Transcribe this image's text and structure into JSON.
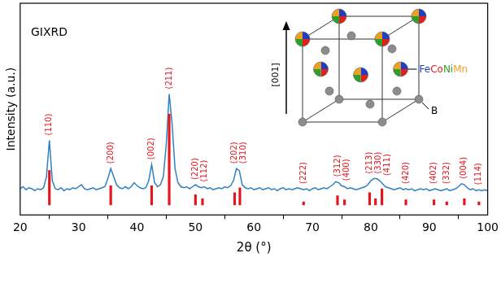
{
  "chart_data": {
    "type": "line",
    "panel_label": "GIXRD",
    "x_label": "2θ (°)",
    "y_label": "Intensity (a.u.)",
    "xlim": [
      20,
      100
    ],
    "xticks": [
      20,
      30,
      40,
      50,
      60,
      70,
      80,
      90,
      100
    ],
    "ylim": [
      -5,
      100
    ],
    "tick_labels": "x",
    "grid": false,
    "series": [
      {
        "type": "line",
        "color": "#2f7fc1",
        "x": [
          20,
          20.5,
          21,
          21.5,
          22,
          22.5,
          23,
          23.5,
          24,
          24.5,
          25,
          25.5,
          26,
          26.5,
          27,
          27.5,
          28,
          28.5,
          29,
          29.5,
          30,
          30.5,
          31,
          31.5,
          32,
          32.5,
          33,
          33.5,
          34,
          34.5,
          35,
          35.5,
          36,
          36.5,
          37,
          37.5,
          38,
          38.5,
          39,
          39.5,
          40,
          40.5,
          41,
          41.5,
          42,
          42.5,
          43,
          43.5,
          44,
          44.5,
          45,
          45.5,
          46,
          46.5,
          47,
          47.5,
          48,
          48.5,
          49,
          49.5,
          50,
          50.5,
          51,
          51.5,
          52,
          52.5,
          53,
          53.5,
          54,
          54.5,
          55,
          55.5,
          56,
          56.5,
          57,
          57.5,
          58,
          58.5,
          59,
          59.5,
          60,
          60.5,
          61,
          61.5,
          62,
          62.5,
          63,
          63.5,
          64,
          64.5,
          65,
          65.5,
          66,
          66.5,
          67,
          67.5,
          68,
          68.5,
          69,
          69.5,
          70,
          70.5,
          71,
          71.5,
          72,
          72.5,
          73,
          73.5,
          74,
          74.5,
          75,
          75.5,
          76,
          76.5,
          77,
          77.5,
          78,
          78.5,
          79,
          79.5,
          80,
          80.5,
          81,
          81.5,
          82,
          82.5,
          83,
          83.5,
          84,
          84.5,
          85,
          85.5,
          86,
          86.5,
          87,
          87.5,
          88,
          88.5,
          89,
          89.5,
          90,
          90.5,
          91,
          91.5,
          92,
          92.5,
          93,
          93.5,
          94,
          94.5,
          95,
          95.5,
          96,
          96.5,
          97,
          97.5,
          98,
          98.5,
          99,
          99.5,
          100
        ],
        "values": [
          8,
          9,
          7.5,
          8.5,
          8,
          7,
          8,
          7.5,
          8.5,
          14,
          32,
          12,
          8,
          7.5,
          8.5,
          7,
          8,
          7.5,
          8.5,
          8,
          9,
          10,
          8,
          7.5,
          8,
          8.5,
          7.5,
          8,
          8.5,
          9,
          13,
          18,
          14,
          10,
          8.5,
          8,
          9,
          8,
          9,
          11,
          9.5,
          8.5,
          8,
          8.5,
          12,
          20,
          11,
          9,
          10,
          14,
          30,
          55,
          40,
          18,
          11,
          9,
          8.5,
          9,
          8,
          9,
          10,
          9,
          8.5,
          9,
          8,
          8.5,
          7.5,
          8,
          8.5,
          8,
          9,
          8.5,
          9.5,
          12,
          18,
          17,
          10,
          8.5,
          8,
          8.5,
          7.5,
          8,
          8.5,
          7.5,
          8,
          8.5,
          7.5,
          8,
          7,
          8,
          8.5,
          7.5,
          8,
          7.5,
          8,
          8.5,
          8,
          7.5,
          8,
          7,
          8,
          8.5,
          7.5,
          8,
          8.5,
          8,
          9,
          10,
          11.5,
          11,
          9.5,
          9,
          8,
          8.5,
          8,
          7.5,
          8,
          8.5,
          9,
          10,
          12,
          13,
          13,
          12,
          10.5,
          9,
          8.5,
          8,
          7.5,
          8,
          8.5,
          7.5,
          8,
          7.5,
          8,
          7,
          7.5,
          8,
          7.5,
          8,
          7,
          7.5,
          8,
          7.5,
          7,
          7.5,
          8,
          7,
          7.5,
          8,
          9,
          10.5,
          10,
          8.5,
          7.5,
          8,
          7,
          7.5,
          7,
          7.5,
          7
        ]
      },
      {
        "type": "bar",
        "color": "#e3161e",
        "x": [
          25.0,
          35.5,
          42.5,
          45.5,
          50.0,
          51.2,
          56.7,
          57.6,
          68.5,
          74.3,
          75.5,
          79.8,
          80.8,
          81.9,
          86.0,
          90.8,
          93.0,
          96.0,
          98.5
        ],
        "values": [
          17,
          9.5,
          9.5,
          45,
          5,
          3,
          6,
          8.5,
          1.5,
          4.5,
          2.5,
          6,
          3,
          8,
          2.5,
          2.5,
          1.5,
          3,
          1.5
        ],
        "labels": [
          "(110)",
          "(200)",
          "(002)",
          "(211)",
          "(220)",
          "(112)",
          "(202)",
          "(310)",
          "(222)",
          "(312)",
          "(400)",
          "(213)",
          "(330)",
          "(411)",
          "(420)",
          "(402)",
          "(332)",
          "(004)",
          "(114)"
        ]
      }
    ],
    "inset": {
      "direction_label": "[001]",
      "metal_label": [
        {
          "text": "Fe",
          "color": "#1f3fbf"
        },
        {
          "text": "Co",
          "color": "#e0201b"
        },
        {
          "text": "Ni",
          "color": "#2ca02c"
        },
        {
          "text": "Mn",
          "color": "#f0a020"
        }
      ],
      "boron_label": "B"
    }
  }
}
